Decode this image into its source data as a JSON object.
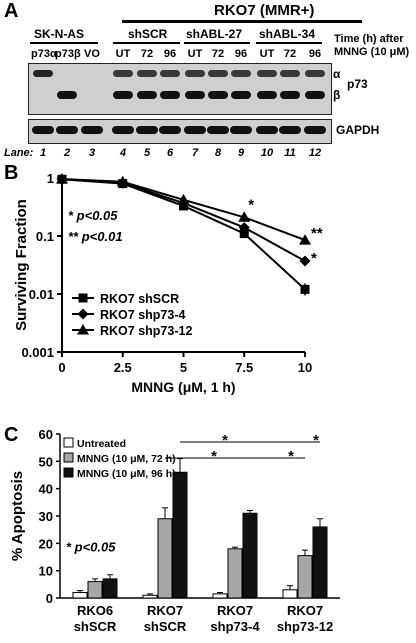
{
  "panel_a": {
    "letter": "A",
    "header_top": "RKO7 (MMR+)",
    "group_sknas": "SK-N-AS",
    "group_shscr": "shSCR",
    "group_abl27": "shABL-27",
    "group_abl34": "shABL-34",
    "lane_labels_top": [
      "p73α",
      "p73β",
      "VO",
      "UT",
      "72",
      "96",
      "UT",
      "72",
      "96",
      "UT",
      "72",
      "96"
    ],
    "time_label_line1": "Time (h) after",
    "time_label_line2": "MNNG (10 μM)",
    "band_alpha": "α",
    "band_beta": "β",
    "protein_p73": "p73",
    "protein_gapdh": "GAPDH",
    "lane_label": "Lane:",
    "lane_numbers": [
      "1",
      "2",
      "3",
      "4",
      "5",
      "6",
      "7",
      "8",
      "9",
      "10",
      "11",
      "12"
    ]
  },
  "panel_b": {
    "letter": "B",
    "annot1": "* p<0.05",
    "annot2": "** p<0.01",
    "star_single": "*",
    "star_double": "**"
  },
  "panel_c": {
    "letter": "C",
    "annot": "* p<0.05",
    "star": "*"
  },
  "chart_data": [
    {
      "type": "line",
      "xlabel": "MNNG (μM, 1 h)",
      "ylabel": "Surviving Fraction",
      "log_y": true,
      "ylim": [
        0.001,
        1
      ],
      "xlim": [
        0,
        10
      ],
      "x": [
        0,
        2.5,
        5,
        7.5,
        10
      ],
      "x_ticks": [
        "0",
        "2.5",
        "5",
        "7.5",
        "10"
      ],
      "y_ticks": [
        "1",
        "0.1",
        "0.01",
        "0.001"
      ],
      "legend_position": "bottom-left",
      "series": [
        {
          "name": "RKO7 shSCR",
          "marker": "square",
          "values": [
            0.95,
            0.8,
            0.33,
            0.11,
            0.012
          ]
        },
        {
          "name": "RKO7 shp73-4",
          "marker": "diamond",
          "values": [
            0.95,
            0.82,
            0.37,
            0.14,
            0.037
          ]
        },
        {
          "name": "RKO7 shp73-12",
          "marker": "triangle",
          "values": [
            0.96,
            0.86,
            0.42,
            0.21,
            0.085
          ]
        }
      ]
    },
    {
      "type": "bar",
      "ylabel": "% Apoptosis",
      "ylim": [
        0,
        60
      ],
      "y_ticks": [
        "0",
        "10",
        "20",
        "30",
        "40",
        "50",
        "60"
      ],
      "categories": [
        "RKO6\nshSCR",
        "RKO7\nshSCR",
        "RKO7\nshp73-4",
        "RKO7\nshp73-12"
      ],
      "category_line1": [
        "RKO6",
        "RKO7",
        "RKO7",
        "RKO7"
      ],
      "category_line2": [
        "shSCR",
        "shSCR",
        "shp73-4",
        "shp73-12"
      ],
      "legend_position": "top-left",
      "series": [
        {
          "name": "Untreated",
          "color": "#ffffff",
          "values": [
            2,
            1,
            1.5,
            3
          ],
          "errors": [
            0.7,
            0.5,
            0.5,
            1.5
          ]
        },
        {
          "name": "MNNG (10 μM, 72 h)",
          "color": "#a6a6a6",
          "values": [
            6,
            29,
            18,
            15.5
          ],
          "errors": [
            1,
            4,
            0.6,
            2
          ]
        },
        {
          "name": "MNNG (10 μM, 96 h)",
          "color": "#111111",
          "values": [
            7,
            46,
            31,
            26
          ],
          "errors": [
            1.5,
            5,
            1,
            3
          ]
        }
      ]
    }
  ]
}
